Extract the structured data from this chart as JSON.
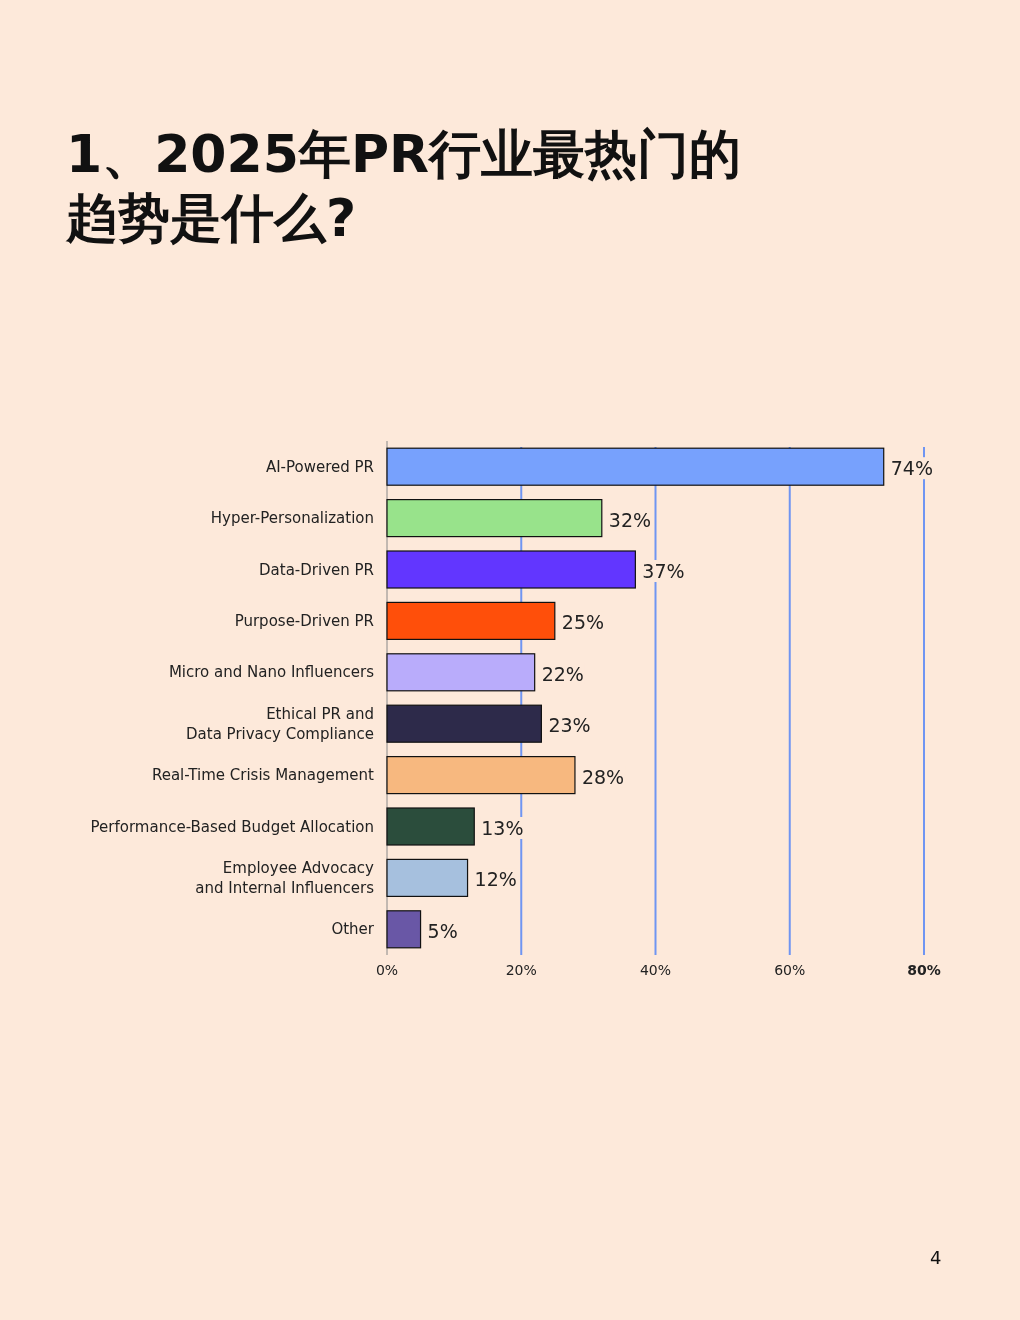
{
  "chart_data": {
    "type": "bar",
    "orientation": "horizontal",
    "title": "1、2025年PR行业最热门的趋势是什么?",
    "categories": [
      "AI-Powered PR",
      "Hyper-Personalization",
      "Data-Driven PR",
      "Purpose-Driven PR",
      "Micro and Nano Influencers",
      "Ethical PR and\nData Privacy Compliance",
      "Real-Time Crisis Management",
      "Performance-Based Budget Allocation",
      "Employee Advocacy\nand Internal Influencers",
      "Other"
    ],
    "values": [
      74,
      32,
      37,
      25,
      22,
      23,
      28,
      13,
      12,
      5
    ],
    "value_labels": [
      "74%",
      "32%",
      "37%",
      "25%",
      "22%",
      "23%",
      "28%",
      "13%",
      "12%",
      "5%"
    ],
    "colors": [
      "#77a1fd",
      "#98e38b",
      "#6236ff",
      "#ff4f0a",
      "#b9acfb",
      "#2d2a4a",
      "#f7b87f",
      "#2b4d3c",
      "#a6c0de",
      "#6957a6"
    ],
    "xlim": [
      0,
      80
    ],
    "xticks": [
      {
        "value": 0,
        "label": "0%"
      },
      {
        "value": 20,
        "label": "20%"
      },
      {
        "value": 40,
        "label": "40%"
      },
      {
        "value": 60,
        "label": "60%"
      },
      {
        "value": 80,
        "label": "80%"
      }
    ],
    "grid": "x",
    "annotations": [
      "4"
    ]
  }
}
